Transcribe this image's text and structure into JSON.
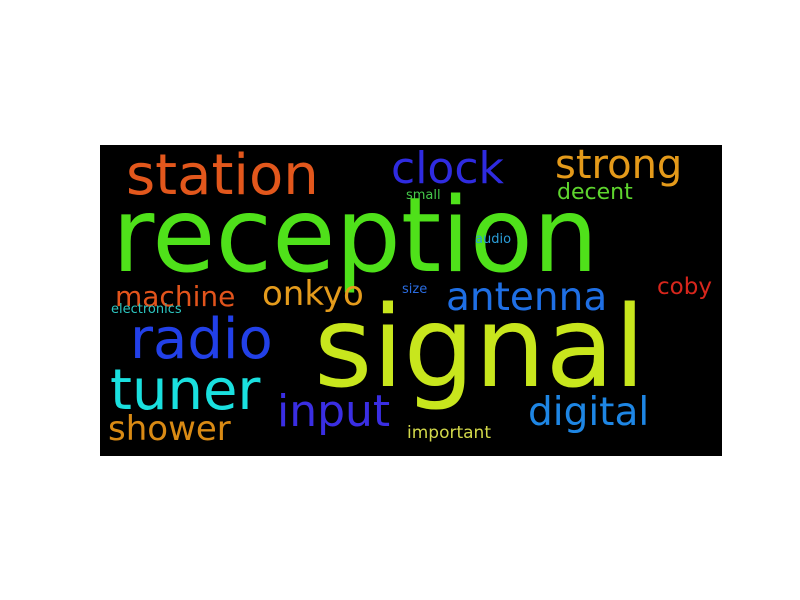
{
  "word_cloud": {
    "background": "#000000",
    "words": [
      {
        "key": "reception",
        "text": "reception",
        "color": "#4fe11a"
      },
      {
        "key": "signal",
        "text": "signal",
        "color": "#c8e61d"
      },
      {
        "key": "station",
        "text": "station",
        "color": "#e2571c"
      },
      {
        "key": "clock",
        "text": "clock",
        "color": "#2f2be0"
      },
      {
        "key": "strong",
        "text": "strong",
        "color": "#e49a1a"
      },
      {
        "key": "decent",
        "text": "decent",
        "color": "#5ed52e"
      },
      {
        "key": "small",
        "text": "small",
        "color": "#45c84a"
      },
      {
        "key": "audio",
        "text": "audio",
        "color": "#2b9ed8"
      },
      {
        "key": "machine",
        "text": "machine",
        "color": "#e2541c"
      },
      {
        "key": "onkyo",
        "text": "onkyo",
        "color": "#e49b1c"
      },
      {
        "key": "antenna",
        "text": "antenna",
        "color": "#1f6fe4"
      },
      {
        "key": "coby",
        "text": "coby",
        "color": "#d8261c"
      },
      {
        "key": "size",
        "text": "size",
        "color": "#2a6ce0"
      },
      {
        "key": "electronics",
        "text": "electronics",
        "color": "#2cc6c0"
      },
      {
        "key": "radio",
        "text": "radio",
        "color": "#2240e8"
      },
      {
        "key": "tuner",
        "text": "tuner",
        "color": "#1ae0df"
      },
      {
        "key": "input",
        "text": "input",
        "color": "#3a2ee3"
      },
      {
        "key": "digital",
        "text": "digital",
        "color": "#1e86e4"
      },
      {
        "key": "shower",
        "text": "shower",
        "color": "#d98a14"
      },
      {
        "key": "important",
        "text": "important",
        "color": "#d2d84a"
      }
    ]
  }
}
